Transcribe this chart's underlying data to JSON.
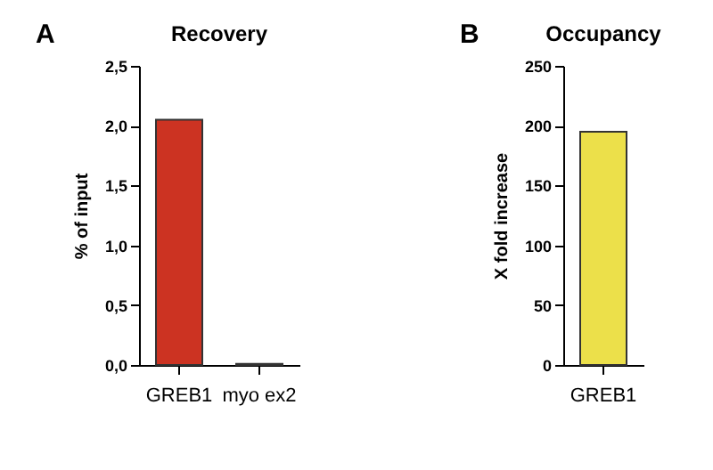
{
  "chart_data": [
    {
      "type": "bar",
      "title": "Recovery",
      "ylabel": "% of input",
      "annotations": [
        "A"
      ],
      "categories": [
        "GREB1",
        "myo ex2"
      ],
      "values": [
        2.05,
        0.01
      ],
      "colors": [
        "#cc3322",
        "#222222"
      ],
      "ylim": [
        0,
        2.5
      ],
      "yticks": [
        {
          "value": 0,
          "label": "0,0"
        },
        {
          "value": 0.5,
          "label": "0,5"
        },
        {
          "value": 1,
          "label": "1,0"
        },
        {
          "value": 1.5,
          "label": "1,5"
        },
        {
          "value": 2,
          "label": "2,0"
        },
        {
          "value": 2.5,
          "label": "2,5"
        }
      ],
      "grid": false
    },
    {
      "type": "bar",
      "title": "Occupancy",
      "ylabel": "X fold increase",
      "annotations": [
        "B"
      ],
      "categories": [
        "GREB1"
      ],
      "values": [
        195
      ],
      "colors": [
        "#ece04a"
      ],
      "ylim": [
        0,
        250
      ],
      "yticks": [
        0,
        50,
        100,
        150,
        200,
        250
      ],
      "grid": false
    }
  ]
}
